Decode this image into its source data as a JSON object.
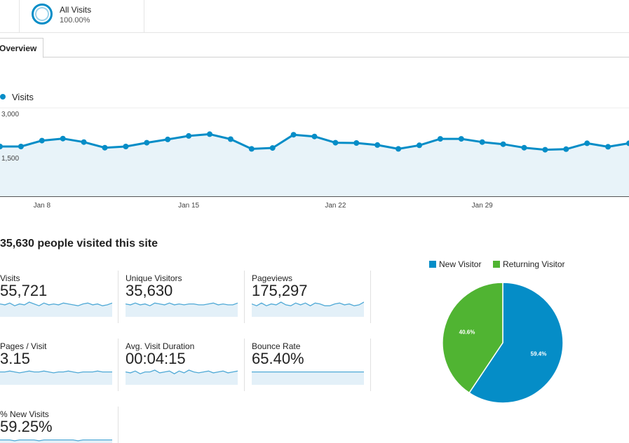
{
  "segment": {
    "name": "All Visits",
    "percent": "100.00%",
    "color": "#058dc7"
  },
  "tabs": [
    {
      "label": "Overview",
      "active": true
    }
  ],
  "chart_data": [
    {
      "type": "area",
      "series": [
        {
          "name": "Visits",
          "color": "#058dc7",
          "values": [
            1690,
            1690,
            1890,
            1960,
            1840,
            1650,
            1690,
            1820,
            1930,
            2050,
            2110,
            1940,
            1610,
            1640,
            2090,
            2030,
            1820,
            1810,
            1740,
            1610,
            1730,
            1950,
            1950,
            1840,
            1770,
            1650,
            1580,
            1600,
            1800,
            1680,
            1800,
            1840
          ]
        }
      ],
      "x_tick_labels": [
        "Jan 8",
        "Jan 15",
        "Jan 22",
        "Jan 29"
      ],
      "y_tick_labels": [
        "3,000",
        "1,500"
      ],
      "ylim": [
        0,
        3000
      ],
      "grid": true
    },
    {
      "type": "pie",
      "categories": [
        "New Visitor",
        "Returning Visitor"
      ],
      "values": [
        59.4,
        40.6
      ],
      "labels": [
        "59.4%",
        "40.6%"
      ],
      "colors": [
        "#058dc7",
        "#50b432"
      ],
      "legend": "top"
    }
  ],
  "headline": "35,630 people visited this site",
  "metrics": [
    {
      "label": "Visits",
      "value": "55,721",
      "spark": [
        5,
        4,
        6,
        3,
        5,
        4,
        7,
        5,
        3,
        6,
        4,
        5,
        4,
        6,
        5,
        4,
        3,
        5,
        6,
        4,
        5,
        3,
        4,
        6
      ]
    },
    {
      "label": "Unique Visitors",
      "value": "35,630",
      "spark": [
        5,
        4,
        6,
        4,
        5,
        3,
        6,
        5,
        4,
        6,
        4,
        5,
        4,
        5,
        5,
        4,
        4,
        5,
        6,
        4,
        5,
        4,
        4,
        6
      ]
    },
    {
      "label": "Pageviews",
      "value": "175,297",
      "spark": [
        5,
        3,
        6,
        3,
        5,
        4,
        7,
        4,
        3,
        6,
        4,
        6,
        3,
        6,
        5,
        3,
        3,
        5,
        6,
        4,
        5,
        3,
        4,
        7
      ]
    },
    {
      "label": "Pages / Visit",
      "value": "3.15",
      "spark": [
        5,
        5,
        6,
        5,
        4,
        5,
        6,
        5,
        5,
        6,
        5,
        4,
        5,
        5,
        6,
        5,
        4,
        5,
        5,
        5,
        6,
        5,
        5,
        5
      ]
    },
    {
      "label": "Avg. Visit Duration",
      "value": "00:04:15",
      "spark": [
        5,
        4,
        6,
        3,
        5,
        5,
        7,
        4,
        5,
        6,
        3,
        6,
        4,
        7,
        5,
        4,
        5,
        6,
        4,
        5,
        6,
        4,
        5,
        6
      ]
    },
    {
      "label": "Bounce Rate",
      "value": "65.40%",
      "spark": [
        5,
        5,
        5,
        5,
        5,
        5,
        5,
        5,
        5,
        5,
        5,
        5,
        5,
        5,
        5,
        5,
        5,
        5,
        5,
        5,
        5,
        5,
        5,
        5
      ]
    },
    {
      "label": "% New Visits",
      "value": "59.25%",
      "spark": [
        5,
        5,
        5,
        4,
        5,
        5,
        5,
        5,
        4,
        5,
        5,
        5,
        5,
        5,
        5,
        5,
        4,
        5,
        5,
        5,
        5,
        5,
        5,
        5
      ]
    }
  ]
}
